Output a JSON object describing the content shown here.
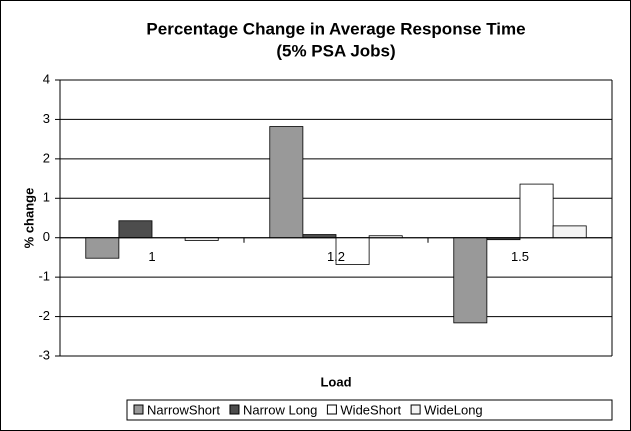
{
  "chart_data": {
    "type": "bar",
    "title": "Percentage Change in Average Response Time",
    "subtitle": "(5% PSA Jobs)",
    "x_label": "Load",
    "y_label": "% change",
    "categories": [
      "1",
      "1.2",
      "1.5"
    ],
    "series": [
      {
        "name": "NarrowShort",
        "color": "#999999",
        "values": [
          -0.52,
          2.82,
          -2.16
        ]
      },
      {
        "name": "Narrow Long",
        "color": "#4d4d4d",
        "values": [
          0.43,
          0.08,
          -0.05
        ]
      },
      {
        "name": "WideShort",
        "color": "#ffffff",
        "values": [
          0,
          -0.68,
          1.36
        ]
      },
      {
        "name": "WideLong",
        "color": "#f4f4f4",
        "values": [
          -0.07,
          0.05,
          0.3
        ]
      }
    ],
    "ylim": [
      -3,
      4
    ],
    "yticks": [
      -3,
      -2,
      -1,
      0,
      1,
      2,
      3,
      4
    ],
    "grid": true
  }
}
